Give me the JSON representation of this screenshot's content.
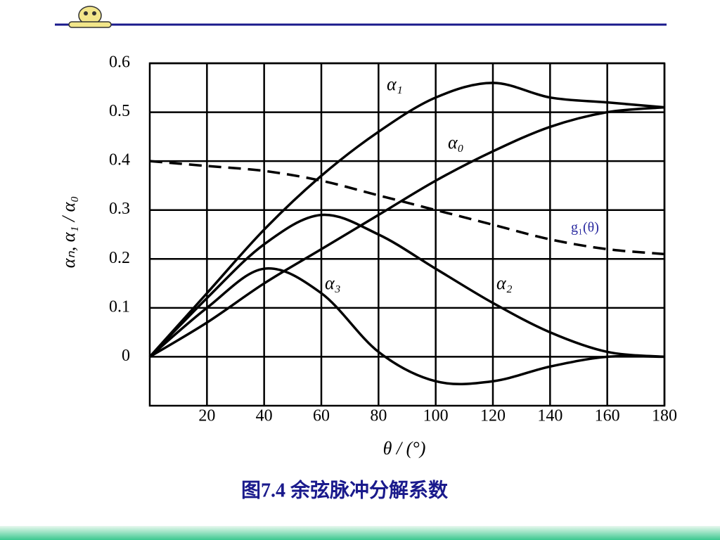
{
  "chart_data": {
    "type": "line",
    "caption": "图7.4  余弦脉冲分解系数",
    "xlabel": "θ / (°)",
    "ylabel": "αₙ, α₁ / α₀",
    "x": [
      0,
      20,
      40,
      60,
      80,
      100,
      120,
      140,
      160,
      180
    ],
    "series": [
      {
        "name": "α₁",
        "color": "#000000",
        "values": [
          0,
          0.13,
          0.26,
          0.37,
          0.46,
          0.53,
          0.56,
          0.53,
          0.52,
          0.51
        ]
      },
      {
        "name": "α₀",
        "color": "#000000",
        "values": [
          0,
          0.07,
          0.15,
          0.22,
          0.29,
          0.36,
          0.42,
          0.47,
          0.5,
          0.51
        ]
      },
      {
        "name": "α₃",
        "color": "#000000",
        "values": [
          0,
          0.1,
          0.18,
          0.13,
          0.01,
          -0.05,
          -0.05,
          -0.02,
          0,
          0
        ]
      },
      {
        "name": "α₂",
        "color": "#000000",
        "values": [
          0,
          0.12,
          0.23,
          0.29,
          0.25,
          0.18,
          0.11,
          0.05,
          0.01,
          0
        ]
      },
      {
        "name": "g₁(θ)",
        "color": "#000000",
        "label_color": "#2a2aa0",
        "dashed": true,
        "values": [
          0.4,
          0.39,
          0.38,
          0.36,
          0.33,
          0.3,
          0.27,
          0.24,
          0.22,
          0.21
        ]
      }
    ],
    "xlim": [
      0,
      180
    ],
    "xticks": [
      20,
      40,
      60,
      80,
      100,
      120,
      140,
      160,
      180
    ],
    "ylim": [
      -0.1,
      0.6
    ],
    "yticks": [
      0,
      0.1,
      0.2,
      0.3,
      0.4,
      0.5,
      0.6
    ],
    "grid": true
  }
}
